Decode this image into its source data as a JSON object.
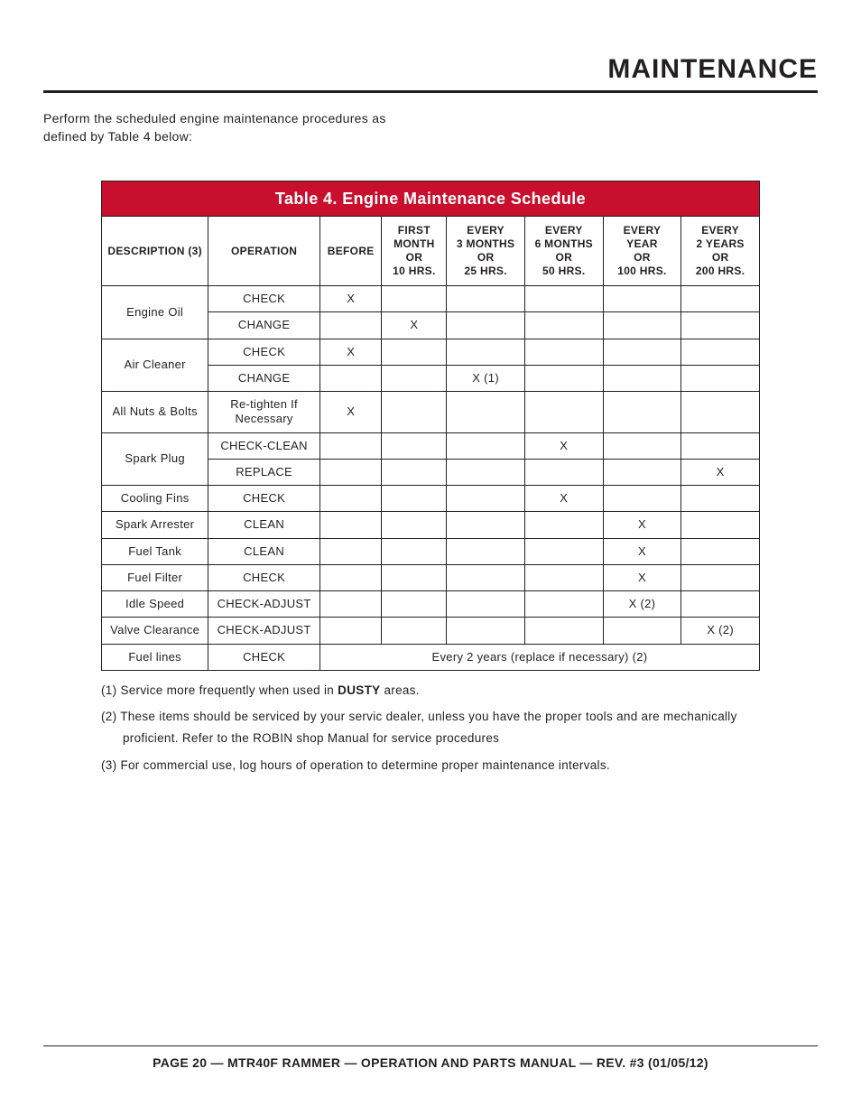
{
  "header": {
    "title": "MAINTENANCE"
  },
  "intro": "Perform the scheduled engine maintenance procedures as defined by Table 4 below:",
  "table": {
    "title": "Table 4. Engine Maintenance Schedule",
    "columns": [
      "DESCRIPTION (3)",
      "OPERATION",
      "BEFORE",
      "FIRST MONTH OR 10 HRS.",
      "EVERY 3 MONTHS OR 25 HRS.",
      "EVERY 6 MONTHS OR 50 HRS.",
      "EVERY YEAR OR 100 HRS.",
      "EVERY 2 YEARS OR 200 HRS."
    ],
    "col_html": [
      "DESCRIPTION (3)",
      "OPERATION",
      "BEFORE",
      "FIRST<br>MONTH<br>OR<br>10 HRS.",
      "EVERY<br>3 MONTHS<br>OR<br>25 HRS.",
      "EVERY<br>6 MONTHS<br>OR<br>50 HRS.",
      "EVERY<br>YEAR<br>OR<br>100 HRS.",
      "EVERY<br>2 YEARS<br>OR<br>200 HRS."
    ],
    "rows": [
      {
        "desc": "Engine Oil",
        "rowspan": 2,
        "op": "CHECK",
        "marks": [
          "X",
          "",
          "",
          "",
          "",
          ""
        ]
      },
      {
        "op": "CHANGE",
        "marks": [
          "",
          "X",
          "",
          "",
          "",
          ""
        ]
      },
      {
        "desc": "Air Cleaner",
        "rowspan": 2,
        "op": "CHECK",
        "marks": [
          "X",
          "",
          "",
          "",
          "",
          ""
        ]
      },
      {
        "op": "CHANGE",
        "marks": [
          "",
          "",
          "X (1)",
          "",
          "",
          ""
        ]
      },
      {
        "desc": "All Nuts & Bolts",
        "op": "Re-tighten If Necessary",
        "op_wrap": true,
        "marks": [
          "X",
          "",
          "",
          "",
          "",
          ""
        ]
      },
      {
        "desc": "Spark Plug",
        "rowspan": 2,
        "op": "CHECK-CLEAN",
        "marks": [
          "",
          "",
          "",
          "X",
          "",
          ""
        ]
      },
      {
        "op": "REPLACE",
        "marks": [
          "",
          "",
          "",
          "",
          "",
          "X"
        ]
      },
      {
        "desc": "Cooling Fins",
        "op": "CHECK",
        "marks": [
          "",
          "",
          "",
          "X",
          "",
          ""
        ]
      },
      {
        "desc": "Spark Arrester",
        "op": "CLEAN",
        "marks": [
          "",
          "",
          "",
          "",
          "X",
          ""
        ]
      },
      {
        "desc": "Fuel Tank",
        "op": "CLEAN",
        "marks": [
          "",
          "",
          "",
          "",
          "X",
          ""
        ]
      },
      {
        "desc": "Fuel Filter",
        "op": "CHECK",
        "marks": [
          "",
          "",
          "",
          "",
          "X",
          ""
        ]
      },
      {
        "desc": "Idle Speed",
        "op": "CHECK-ADJUST",
        "marks": [
          "",
          "",
          "",
          "",
          "X (2)",
          ""
        ]
      },
      {
        "desc": "Valve Clearance",
        "op": "CHECK-ADJUST",
        "marks": [
          "",
          "",
          "",
          "",
          "",
          "X (2)"
        ]
      },
      {
        "desc": "Fuel lines",
        "op": "CHECK",
        "span_note": "Every 2 years (replace if necessary) (2)"
      }
    ],
    "title_bg": "#c8102e",
    "title_fg": "#ffffff",
    "border_color": "#231f20",
    "font_size_body": 13,
    "font_size_header": 12,
    "font_size_title": 18
  },
  "footnotes": {
    "n1_pre": "(1) Service more frequently when used in ",
    "n1_bold": "DUSTY",
    "n1_post": " areas.",
    "n2a": "(2) These items should be serviced by your servic dealer, unless you have the proper tools and are mechanically",
    "n2b": "proficient. Refer to the ROBIN shop Manual for service procedures",
    "n3": "(3) For commercial use, log hours of operation to determine proper maintenance intervals."
  },
  "footer": "PAGE 20 — MTR40F RAMMER — OPERATION AND PARTS MANUAL — REV. #3 (01/05/12)"
}
